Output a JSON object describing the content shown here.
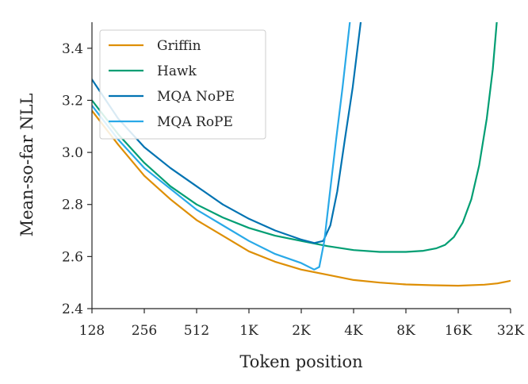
{
  "chart_data": {
    "type": "line",
    "xlabel": "Token position",
    "ylabel": "Mean-so-far NLL",
    "xscale": "log2",
    "xlim": [
      128,
      32768
    ],
    "ylim": [
      2.4,
      3.5
    ],
    "xticks": [
      {
        "value": 128,
        "label": "128"
      },
      {
        "value": 256,
        "label": "256"
      },
      {
        "value": 512,
        "label": "512"
      },
      {
        "value": 1024,
        "label": "1K"
      },
      {
        "value": 2048,
        "label": "2K"
      },
      {
        "value": 4096,
        "label": "4K"
      },
      {
        "value": 8192,
        "label": "8K"
      },
      {
        "value": 16384,
        "label": "16K"
      },
      {
        "value": 32768,
        "label": "32K"
      }
    ],
    "yticks": [
      {
        "value": 2.4,
        "label": "2.4"
      },
      {
        "value": 2.6,
        "label": "2.6"
      },
      {
        "value": 2.8,
        "label": "2.8"
      },
      {
        "value": 3.0,
        "label": "3.0"
      },
      {
        "value": 3.2,
        "label": "3.2"
      },
      {
        "value": 3.4,
        "label": "3.4"
      }
    ],
    "grid": false,
    "legend_position": "top-left",
    "series": [
      {
        "name": "Griffin",
        "color": "#de8f05",
        "points": [
          [
            128,
            3.16
          ],
          [
            181,
            3.03
          ],
          [
            256,
            2.91
          ],
          [
            362,
            2.82
          ],
          [
            512,
            2.74
          ],
          [
            724,
            2.68
          ],
          [
            1024,
            2.62
          ],
          [
            1448,
            2.58
          ],
          [
            2048,
            2.55
          ],
          [
            2896,
            2.53
          ],
          [
            4096,
            2.51
          ],
          [
            5793,
            2.5
          ],
          [
            8192,
            2.493
          ],
          [
            11585,
            2.49
          ],
          [
            16384,
            2.488
          ],
          [
            23170,
            2.492
          ],
          [
            27554,
            2.497
          ],
          [
            32768,
            2.507
          ]
        ]
      },
      {
        "name": "Hawk",
        "color": "#029e73",
        "points": [
          [
            128,
            3.2
          ],
          [
            181,
            3.07
          ],
          [
            256,
            2.96
          ],
          [
            362,
            2.87
          ],
          [
            512,
            2.8
          ],
          [
            724,
            2.75
          ],
          [
            1024,
            2.71
          ],
          [
            1448,
            2.68
          ],
          [
            2048,
            2.66
          ],
          [
            2896,
            2.64
          ],
          [
            4096,
            2.625
          ],
          [
            5793,
            2.618
          ],
          [
            8192,
            2.618
          ],
          [
            10321,
            2.622
          ],
          [
            12288,
            2.632
          ],
          [
            13777,
            2.645
          ],
          [
            15470,
            2.675
          ],
          [
            17380,
            2.73
          ],
          [
            19484,
            2.82
          ],
          [
            21627,
            2.95
          ],
          [
            23900,
            3.13
          ],
          [
            25900,
            3.32
          ],
          [
            27300,
            3.5
          ]
        ]
      },
      {
        "name": "MQA NoPE",
        "color": "#0173b2",
        "points": [
          [
            128,
            3.28
          ],
          [
            181,
            3.13
          ],
          [
            256,
            3.02
          ],
          [
            362,
            2.94
          ],
          [
            512,
            2.87
          ],
          [
            724,
            2.8
          ],
          [
            1024,
            2.745
          ],
          [
            1448,
            2.7
          ],
          [
            2048,
            2.665
          ],
          [
            2435,
            2.652
          ],
          [
            2740,
            2.66
          ],
          [
            3010,
            2.72
          ],
          [
            3300,
            2.85
          ],
          [
            3650,
            3.05
          ],
          [
            4050,
            3.25
          ],
          [
            4500,
            3.5
          ]
        ]
      },
      {
        "name": "MQA RoPE",
        "color": "#29a9e8",
        "points": [
          [
            128,
            3.18
          ],
          [
            181,
            3.05
          ],
          [
            256,
            2.94
          ],
          [
            362,
            2.86
          ],
          [
            512,
            2.78
          ],
          [
            724,
            2.72
          ],
          [
            1024,
            2.66
          ],
          [
            1448,
            2.61
          ],
          [
            2048,
            2.575
          ],
          [
            2430,
            2.55
          ],
          [
            2600,
            2.56
          ],
          [
            2780,
            2.66
          ],
          [
            3000,
            2.85
          ],
          [
            3250,
            3.05
          ],
          [
            3540,
            3.25
          ],
          [
            3900,
            3.5
          ]
        ]
      }
    ]
  }
}
